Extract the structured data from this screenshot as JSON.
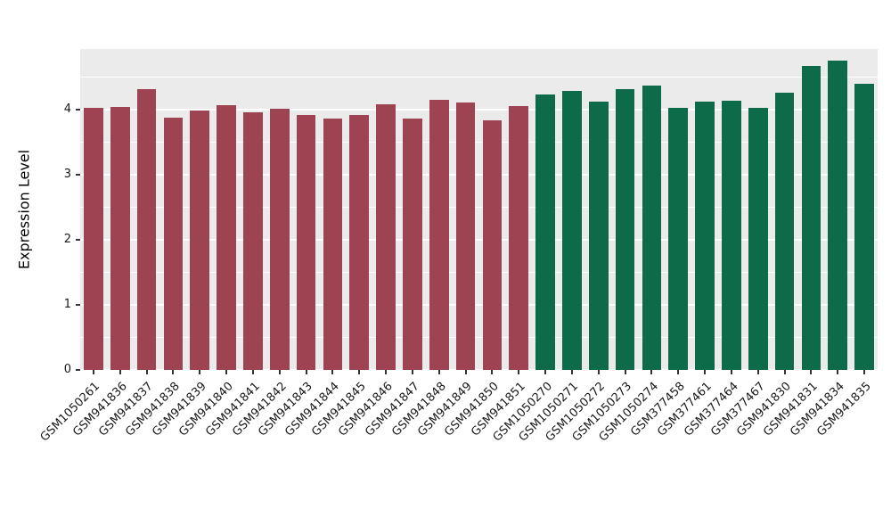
{
  "chart_data": {
    "type": "bar",
    "title": "",
    "xlabel": "",
    "ylabel": "Expression Level",
    "ylim": [
      0,
      4.93
    ],
    "yticks": [
      0,
      1,
      2,
      3,
      4
    ],
    "minor_ticks": [
      0.5,
      1.5,
      2.5,
      3.5,
      4.5
    ],
    "grid": "on",
    "legend": "none",
    "panel_bg": "#EBEBEB",
    "gridline_color": "#FFFFFF",
    "categories": [
      "GSM1050261",
      "GSM941836",
      "GSM941837",
      "GSM941838",
      "GSM941839",
      "GSM941840",
      "GSM941841",
      "GSM941842",
      "GSM941843",
      "GSM941844",
      "GSM941845",
      "GSM941846",
      "GSM941847",
      "GSM941848",
      "GSM941849",
      "GSM941850",
      "GSM941851",
      "GSM1050270",
      "GSM1050271",
      "GSM1050272",
      "GSM1050273",
      "GSM1050274",
      "GSM377458",
      "GSM377461",
      "GSM377464",
      "GSM377467",
      "GSM941830",
      "GSM941831",
      "GSM941834",
      "GSM941835"
    ],
    "values": [
      4.02,
      4.04,
      4.32,
      3.88,
      3.98,
      4.07,
      3.96,
      4.01,
      3.92,
      3.86,
      3.91,
      4.08,
      3.86,
      4.15,
      4.11,
      3.83,
      4.06,
      4.23,
      4.28,
      4.12,
      4.31,
      4.37,
      4.02,
      4.12,
      4.14,
      4.02,
      4.26,
      4.67,
      4.75,
      4.4
    ],
    "bar_groups": [
      "group1",
      "group1",
      "group1",
      "group1",
      "group1",
      "group1",
      "group1",
      "group1",
      "group1",
      "group1",
      "group1",
      "group1",
      "group1",
      "group1",
      "group1",
      "group1",
      "group1",
      "group2",
      "group2",
      "group2",
      "group2",
      "group2",
      "group2",
      "group2",
      "group2",
      "group2",
      "group2",
      "group2",
      "group2",
      "group2"
    ],
    "group_colors": {
      "group1": "#9E4352",
      "group2": "#0D6B4A"
    }
  }
}
